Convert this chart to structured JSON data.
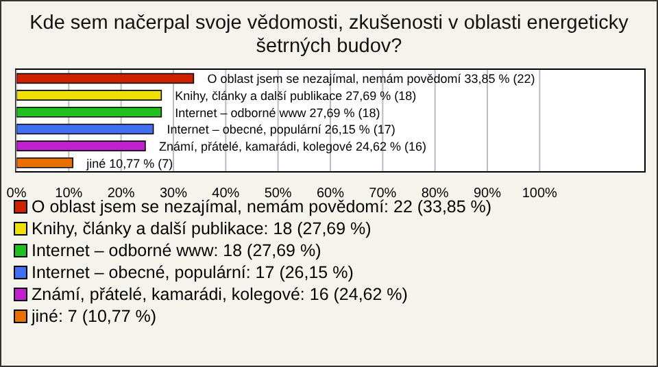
{
  "chart_data": {
    "type": "bar",
    "orientation": "horizontal",
    "stacked": true,
    "title": "Kde sem načerpal svoje vědomosti, zkušenosti v oblasti energeticky šetrných budov?",
    "categories": [
      null,
      null,
      null,
      null,
      null,
      null
    ],
    "series": [
      {
        "name": "O oblast jsem se nezajímal, nemám povědomí: 22 (33,85 %)",
        "color": "#cc2200",
        "values": [
          33.85,
          null,
          null,
          null,
          null,
          null
        ],
        "value_labels": [
          "O oblast jsem se nezajímal, nemám povědomí 33,85 % (22)",
          null,
          null,
          null,
          null,
          null
        ]
      },
      {
        "name": "Knihy, články a další publikace: 18 (27,69 %)",
        "color": "#f0e000",
        "values": [
          null,
          27.69,
          null,
          null,
          null,
          null
        ],
        "value_labels": [
          null,
          "Knihy, články a další publikace 27,69 % (18)",
          null,
          null,
          null,
          null
        ]
      },
      {
        "name": "Internet – odborné www: 18 (27,69 %)",
        "color": "#20c020",
        "values": [
          null,
          null,
          27.69,
          null,
          null,
          null
        ],
        "value_labels": [
          null,
          null,
          "Internet – odborné www 27,69 % (18)",
          null,
          null,
          null
        ]
      },
      {
        "name": "Internet – obecné, populární: 17 (26,15 %)",
        "color": "#4070f0",
        "values": [
          null,
          null,
          null,
          26.15,
          null,
          null
        ],
        "value_labels": [
          null,
          null,
          null,
          "Internet – obecné, populární 26,15 % (17)",
          null,
          null
        ]
      },
      {
        "name": "Známí, přátelé, kamarádi, kolegové: 16 (24,62 %)",
        "color": "#c020d0",
        "values": [
          null,
          null,
          null,
          null,
          24.62,
          null
        ],
        "value_labels": [
          null,
          null,
          null,
          null,
          "Známí, přátelé, kamarádi, kolegové 24,62 % (16)",
          null
        ]
      },
      {
        "name": "jiné: 7 (10,77 %)",
        "color": "#e87000",
        "values": [
          null,
          null,
          null,
          null,
          null,
          10.77
        ],
        "value_labels": [
          null,
          null,
          null,
          null,
          null,
          "jiné 10,77 % (7)"
        ]
      }
    ],
    "xlim": [
      0,
      120
    ],
    "xticks": [
      {
        "value": 0,
        "label": "0%"
      },
      {
        "value": 10,
        "label": "10%"
      },
      {
        "value": 20,
        "label": "20%"
      },
      {
        "value": 30,
        "label": "30%"
      },
      {
        "value": 40,
        "label": "40%"
      },
      {
        "value": 50,
        "label": "50%"
      },
      {
        "value": 60,
        "label": "60%"
      },
      {
        "value": 70,
        "label": "70%"
      },
      {
        "value": 80,
        "label": "80%"
      },
      {
        "value": 90,
        "label": "90%"
      },
      {
        "value": 100,
        "label": "100%"
      }
    ],
    "grid": "x",
    "legend": "bottom"
  }
}
